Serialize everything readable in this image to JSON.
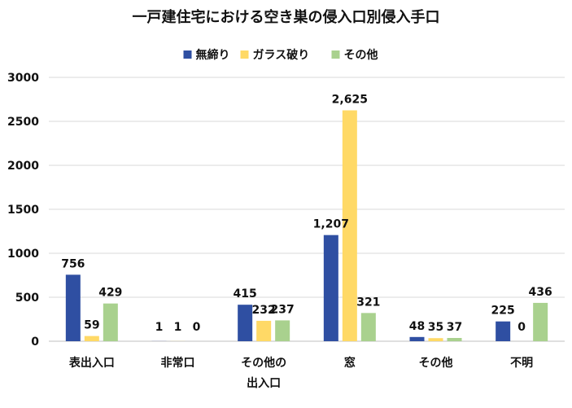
{
  "chart_data": {
    "type": "bar",
    "title": "一戸建住宅における空き巣の侵入口別侵入手口",
    "categories": [
      [
        "表出入口"
      ],
      [
        "非常口"
      ],
      [
        "その他の",
        "出入口"
      ],
      [
        "窓"
      ],
      [
        "その他"
      ],
      [
        "不明"
      ]
    ],
    "series": [
      {
        "name": "無締り",
        "color": "#2F4FA2",
        "values": [
          756,
          1,
          415,
          1207,
          48,
          225
        ],
        "labels": [
          "756",
          "1",
          "415",
          "1,207",
          "48",
          "225"
        ]
      },
      {
        "name": "ガラス破り",
        "color": "#FFD966",
        "values": [
          59,
          1,
          232,
          2625,
          35,
          0
        ],
        "labels": [
          "59",
          "1",
          "232",
          "2,625",
          "35",
          "0"
        ]
      },
      {
        "name": "その他",
        "color": "#A9D18E",
        "values": [
          429,
          0,
          237,
          321,
          37,
          436
        ],
        "labels": [
          "429",
          "0",
          "237",
          "321",
          "37",
          "436"
        ]
      }
    ],
    "ylim": [
      0,
      3000
    ],
    "yticks": [
      0,
      500,
      1000,
      1500,
      2000,
      2500,
      3000
    ],
    "legend_position": "top-center",
    "grid": true
  }
}
